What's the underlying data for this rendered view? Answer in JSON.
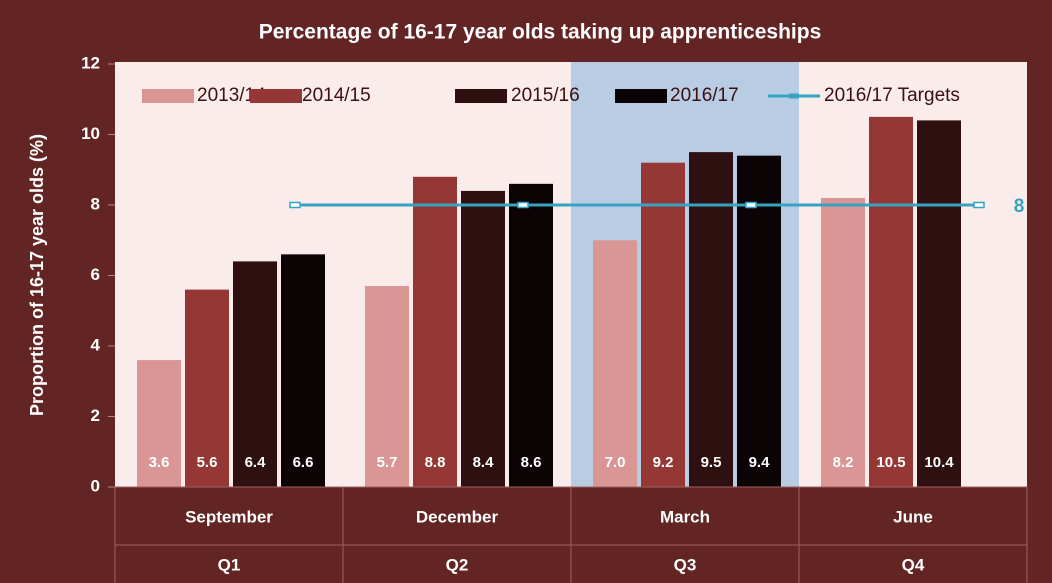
{
  "chart_data": {
    "type": "bar",
    "title": "Percentage of 16-17 year olds taking up apprenticeships",
    "y_label": "Proportion of 16-17 year olds (%)",
    "categories": [
      "September",
      "December",
      "March",
      "June"
    ],
    "groups": [
      "Q1",
      "Q2",
      "Q3",
      "Q4"
    ],
    "highlight_category": "March",
    "highlight_color": "#b8cce4",
    "series": [
      {
        "name": "2013/14",
        "color": "#d99694",
        "values": [
          3.6,
          5.7,
          7,
          8.2
        ],
        "value_labels": [
          "3.6",
          "5.7",
          "7.0",
          "8.2"
        ]
      },
      {
        "name": "2014/15",
        "color": "#953735",
        "values": [
          5.6,
          8.8,
          9.2,
          10.5
        ],
        "value_labels": [
          "5.6",
          "8.8",
          "9.2",
          "10.5"
        ]
      },
      {
        "name": "2015/16",
        "color": "#2e1011",
        "values": [
          6.4,
          8.4,
          9.5,
          10.4
        ],
        "value_labels": [
          "6.4",
          "8.4",
          "9.5",
          "10.4"
        ]
      },
      {
        "name": "2016/17",
        "color": "#0c0304",
        "values": [
          6.6,
          8.6,
          9.4,
          null
        ],
        "value_labels": [
          "6.6",
          "8.6",
          "9.4",
          null
        ]
      },
      {
        "name": "2016/17 Targets",
        "type": "line",
        "color": "#36a3c2",
        "values": [
          8,
          8,
          8,
          8
        ]
      }
    ],
    "ylim": [
      0,
      12
    ],
    "yticks": [
      0,
      2,
      4,
      6,
      8,
      10,
      12
    ],
    "legend": "top"
  }
}
